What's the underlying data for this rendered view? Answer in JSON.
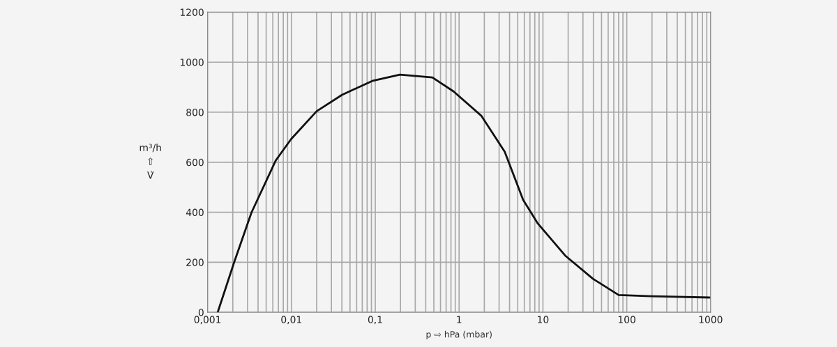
{
  "chart_data": {
    "type": "line",
    "xlabel": "p ⇨ hPa (mbar)",
    "ylabel": "m³/h\n⇧\nV̇",
    "log": "x",
    "grid": true,
    "legend": false,
    "marker": "none",
    "line_style": "solid",
    "xlim": [
      0.001,
      1000
    ],
    "ylim": [
      0,
      1200
    ],
    "xticks": [
      {
        "value": 0.001,
        "label": "0,001"
      },
      {
        "value": 0.01,
        "label": "0,01"
      },
      {
        "value": 0.1,
        "label": "0,1"
      },
      1,
      10,
      100,
      1000
    ],
    "yticks": [
      0,
      200,
      400,
      600,
      800,
      1000,
      1200
    ],
    "series": [
      {
        "color": "#111111",
        "x": [
          0.00132,
          0.00207,
          0.00334,
          0.00653,
          0.0099,
          0.02,
          0.04,
          0.092,
          0.197,
          0.48,
          0.86,
          1.85,
          3.5,
          5.8,
          8.6,
          18.4,
          39.5,
          80,
          195,
          1000
        ],
        "values": [
          0,
          199,
          399,
          608,
          692,
          804,
          869,
          925,
          950,
          939,
          883,
          785,
          642,
          450,
          357,
          227,
          134,
          69,
          64,
          59
        ]
      }
    ]
  }
}
